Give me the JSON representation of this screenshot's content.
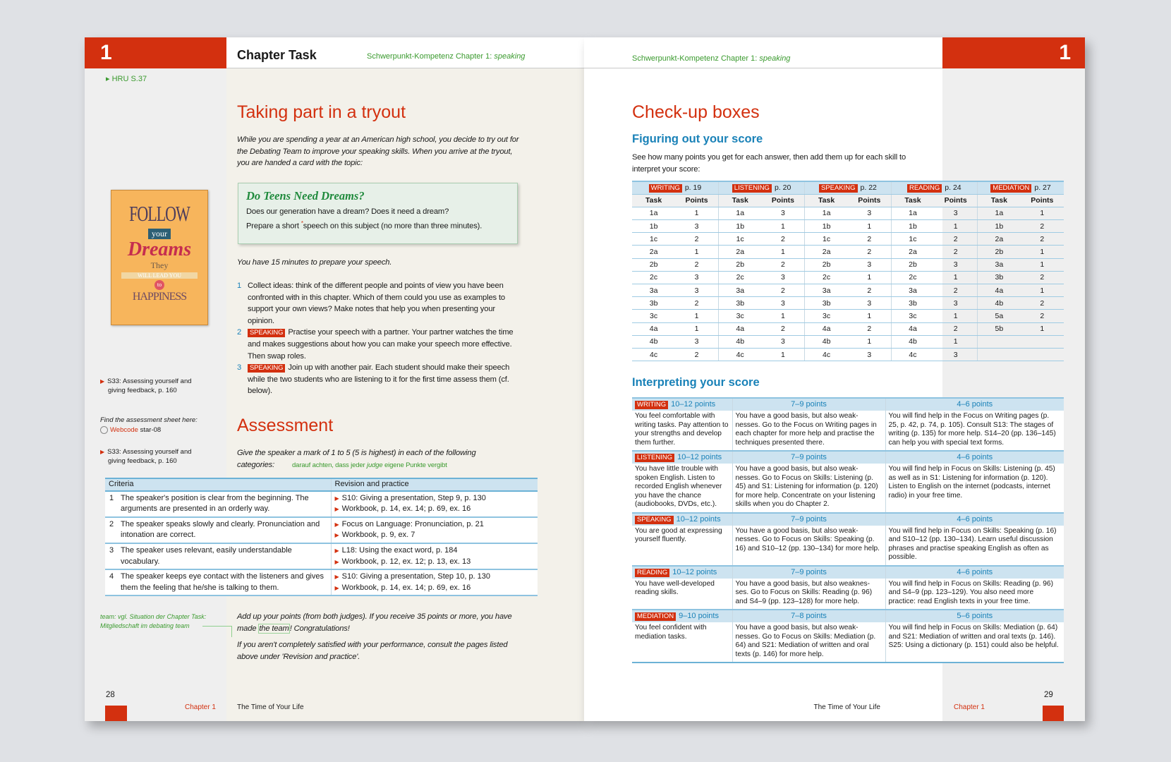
{
  "left_page": {
    "chapter_number": "1",
    "header_title": "Chapter Task",
    "header_subtitle": "Schwerpunkt-Kompetenz Chapter 1:",
    "header_subtitle_em": "speaking",
    "margin_ref": "HRU S.37",
    "title": "Taking part in a tryout",
    "intro": "While you are spending a year at an American high school, you decide to try out for the Debating Team to improve your speaking skills. When you arrive at the tryout, you are handed a card with the topic:",
    "topic_card": {
      "heading": "Do Teens Need Dreams?",
      "line1": "Does our generation have a dream? Does it need a dream?",
      "line2a": "Prepare a short ",
      "marker": "*",
      "line2b": "speech on this subject (no more than three minutes)."
    },
    "poster": {
      "lines": [
        "FOLLOW",
        "your",
        "Dreams",
        "They",
        "WILL LEAD YOU",
        "to",
        "HAPPINESS"
      ]
    },
    "prep_time": "You have 15 minutes to prepare your speech.",
    "steps": [
      {
        "num": "1",
        "tag": "",
        "text": "Collect ideas: think of the different people and points of view you have been confronted with in this chapter. Which of them could you use as examples to support your own views? Make notes that help you when presenting your opinion."
      },
      {
        "num": "2",
        "tag": "SPEAKING",
        "text": "Practise your speech with a partner. Your partner watches the time and makes suggestions about how you can make your speech more effective. Then swap roles."
      },
      {
        "num": "3",
        "tag": "SPEAKING",
        "text": "Join up with another pair. Each student should make their speech while the two students who are listening to it for the first time assess them (cf. below)."
      }
    ],
    "assessment_title": "Assessment",
    "assessment_intro": "Give the speaker a mark of 1 to 5 (5 is highest) in each of the following categories:",
    "assessment_note_a": "darauf achten, dass jeder ",
    "assessment_note_em": "judge",
    "assessment_note_b": " eigene Punkte vergibt",
    "criteria_table": {
      "headers": [
        "Criteria",
        "Revision and practice"
      ],
      "rows": [
        {
          "num": "1",
          "criterion": "The speaker's position is clear from the beginning. The arguments are presented in an orderly way.",
          "refs": [
            "S10: Giving a presentation, Step 9, p. 130",
            "Workbook, p. 14, ex. 14; p. 69, ex. 16"
          ]
        },
        {
          "num": "2",
          "criterion": "The speaker speaks slowly and clearly. Pronunciation and intonation are correct.",
          "refs": [
            "Focus on Language: Pronunciation, p. 21",
            "Workbook, p. 9, ex. 7"
          ]
        },
        {
          "num": "3",
          "criterion": "The speaker uses relevant, easily understandable vocabulary.",
          "refs": [
            "L18: Using the exact word, p. 184",
            "Workbook, p. 12, ex. 12; p. 13, ex. 13"
          ]
        },
        {
          "num": "4",
          "criterion": "The speaker keeps eye contact with the listeners and gives them the feeling that he/she is talking to them.",
          "refs": [
            "S10: Giving a presentation, Step 10, p. 130",
            "Workbook, p. 14, ex. 14; p. 69, ex. 16"
          ]
        }
      ]
    },
    "closing1a": "Add up your points (from both judges). If you receive 35 points or more, you have made ",
    "closing1_hl": "the team",
    "closing1b": "! Congratulations!",
    "closing2": "If you aren't completely satisfied with your performance, consult the pages listed above under 'Revision and practice'.",
    "margin_notes": {
      "s33a": "S33: Assessing yourself and giving feedback, p. 160",
      "find_sheet": "Find the assessment sheet here:",
      "webcode_label": "Webcode",
      "webcode_value": "star-08",
      "s33b": "S33: Assessing yourself and giving feedback, p. 160",
      "team_note_a": "team: vgl. Situation der ",
      "team_note_em": "Chapter Task",
      "team_note_b": ": Mitgliedschaft im ",
      "team_note_em2": "debating team"
    },
    "footer": {
      "page_number": "28",
      "chapter": "Chapter 1",
      "book_title": "The Time of Your Life"
    }
  },
  "right_page": {
    "chapter_number": "1",
    "header_subtitle": "Schwerpunkt-Kompetenz Chapter 1:",
    "header_subtitle_em": "speaking",
    "title": "Check-up boxes",
    "section1": "Figuring out your score",
    "section1_intro": "See how many points you get for each answer, then add them up for each skill to interpret your score:",
    "score_table": {
      "col_task": "Task",
      "col_points": "Points",
      "skills": [
        {
          "skill": "WRITING",
          "page": "p. 19",
          "rows": [
            [
              "1a",
              "1"
            ],
            [
              "1b",
              "3"
            ],
            [
              "1c",
              "2"
            ],
            [
              "2a",
              "1"
            ],
            [
              "2b",
              "2"
            ],
            [
              "2c",
              "3"
            ],
            [
              "3a",
              "3"
            ],
            [
              "3b",
              "2"
            ],
            [
              "3c",
              "1"
            ],
            [
              "4a",
              "1"
            ],
            [
              "4b",
              "3"
            ],
            [
              "4c",
              "2"
            ]
          ]
        },
        {
          "skill": "LISTENING",
          "page": "p. 20",
          "rows": [
            [
              "1a",
              "3"
            ],
            [
              "1b",
              "1"
            ],
            [
              "1c",
              "2"
            ],
            [
              "2a",
              "1"
            ],
            [
              "2b",
              "2"
            ],
            [
              "2c",
              "3"
            ],
            [
              "3a",
              "2"
            ],
            [
              "3b",
              "3"
            ],
            [
              "3c",
              "1"
            ],
            [
              "4a",
              "2"
            ],
            [
              "4b",
              "3"
            ],
            [
              "4c",
              "1"
            ]
          ]
        },
        {
          "skill": "SPEAKING",
          "page": "p. 22",
          "rows": [
            [
              "1a",
              "3"
            ],
            [
              "1b",
              "1"
            ],
            [
              "1c",
              "2"
            ],
            [
              "2a",
              "2"
            ],
            [
              "2b",
              "3"
            ],
            [
              "2c",
              "1"
            ],
            [
              "3a",
              "2"
            ],
            [
              "3b",
              "3"
            ],
            [
              "3c",
              "1"
            ],
            [
              "4a",
              "2"
            ],
            [
              "4b",
              "1"
            ],
            [
              "4c",
              "3"
            ]
          ]
        },
        {
          "skill": "READING",
          "page": "p. 24",
          "rows": [
            [
              "1a",
              "3"
            ],
            [
              "1b",
              "1"
            ],
            [
              "1c",
              "2"
            ],
            [
              "2a",
              "2"
            ],
            [
              "2b",
              "3"
            ],
            [
              "2c",
              "1"
            ],
            [
              "3a",
              "2"
            ],
            [
              "3b",
              "3"
            ],
            [
              "3c",
              "1"
            ],
            [
              "4a",
              "2"
            ],
            [
              "4b",
              "1"
            ],
            [
              "4c",
              "3"
            ]
          ]
        },
        {
          "skill": "MEDIATION",
          "page": "p. 27",
          "rows": [
            [
              "1a",
              "1"
            ],
            [
              "1b",
              "2"
            ],
            [
              "2a",
              "2"
            ],
            [
              "2b",
              "1"
            ],
            [
              "3a",
              "1"
            ],
            [
              "3b",
              "2"
            ],
            [
              "4a",
              "1"
            ],
            [
              "4b",
              "2"
            ],
            [
              "5a",
              "2"
            ],
            [
              "5b",
              "1"
            ]
          ]
        }
      ]
    },
    "section2": "Interpreting your score",
    "interpretation": [
      {
        "skill": "WRITING",
        "high": "10–12 points",
        "mid": "7–9 points",
        "low": "4–6 points",
        "high_text": "You feel comfortable with writing tasks. Pay attention to your strengths and develop them further.",
        "mid_text": "You have a good basis, but also weak-nesses. Go to the Focus on Writing pages in each chapter for more help and practise the techniques presented there.",
        "low_text": "You will find help in the Focus on Writing pages (p. 25, p. 42, p. 74, p. 105). Consult S13: The stages of writing (p. 135) for more help. S14–20 (pp. 136–145) can help you with special text forms."
      },
      {
        "skill": "LISTENING",
        "high": "10–12 points",
        "mid": "7–9 points",
        "low": "4–6 points",
        "high_text": "You have little trouble with spoken English. Listen to recorded English whenever you have the chance (audiobooks, DVDs, etc.).",
        "mid_text": "You have a good basis, but also weak-nesses. Go to Focus on Skills: Listening (p. 45) and S1: Listening for information (p. 120) for more help. Concentrate on your listening skills when you do Chapter 2.",
        "low_text": "You will find help in Focus on Skills: Listening (p. 45) as well as in S1: Listening for information (p. 120). Listen to English on the internet (podcasts, internet radio) in your free time."
      },
      {
        "skill": "SPEAKING",
        "high": "10–12 points",
        "mid": "7–9 points",
        "low": "4–6 points",
        "high_text": "You are good at expressing yourself fluently.",
        "mid_text": "You have a good basis, but also weak-nesses. Go to Focus on Skills: Speaking (p. 16) and S10–12 (pp. 130–134) for more help.",
        "low_text": "You will find help in Focus on Skills: Speaking (p. 16) and S10–12 (pp. 130–134). Learn useful discussion phrases and practise speaking English as often as possible."
      },
      {
        "skill": "READING",
        "high": "10–12 points",
        "mid": "7–9 points",
        "low": "4–6 points",
        "high_text": "You have well-developed reading skills.",
        "mid_text": "You have a good basis, but also weaknes-ses. Go to Focus on Skills: Reading (p. 96) and S4–9 (pp. 123–128) for more help.",
        "low_text": "You will find help in Focus on Skills: Reading (p. 96) and S4–9 (pp. 123–129). You also need more practice: read English texts in your free time."
      },
      {
        "skill": "MEDIATION",
        "high": "9–10 points",
        "mid": "7–8 points",
        "low": "5–6 points",
        "high_text": "You feel confident with mediation tasks.",
        "mid_text": "You have a good basis, but also weak-nesses. Go to Focus on Skills: Mediation (p. 64) and S21: Mediation of written and oral texts (p. 146) for more help.",
        "low_text": "You will find help in Focus on Skills: Mediation (p. 64) and S21: Mediation of written and oral texts (p. 146). S25: Using a dictionary (p. 151) could also be helpful."
      }
    ],
    "footer": {
      "page_number": "29",
      "chapter": "Chapter 1",
      "book_title": "The Time of Your Life"
    }
  },
  "colors": {
    "accent_red": "#d3300f",
    "heading_blue": "#1a82b8",
    "note_green": "#3a9a2e",
    "table_header": "#cde3f0"
  }
}
